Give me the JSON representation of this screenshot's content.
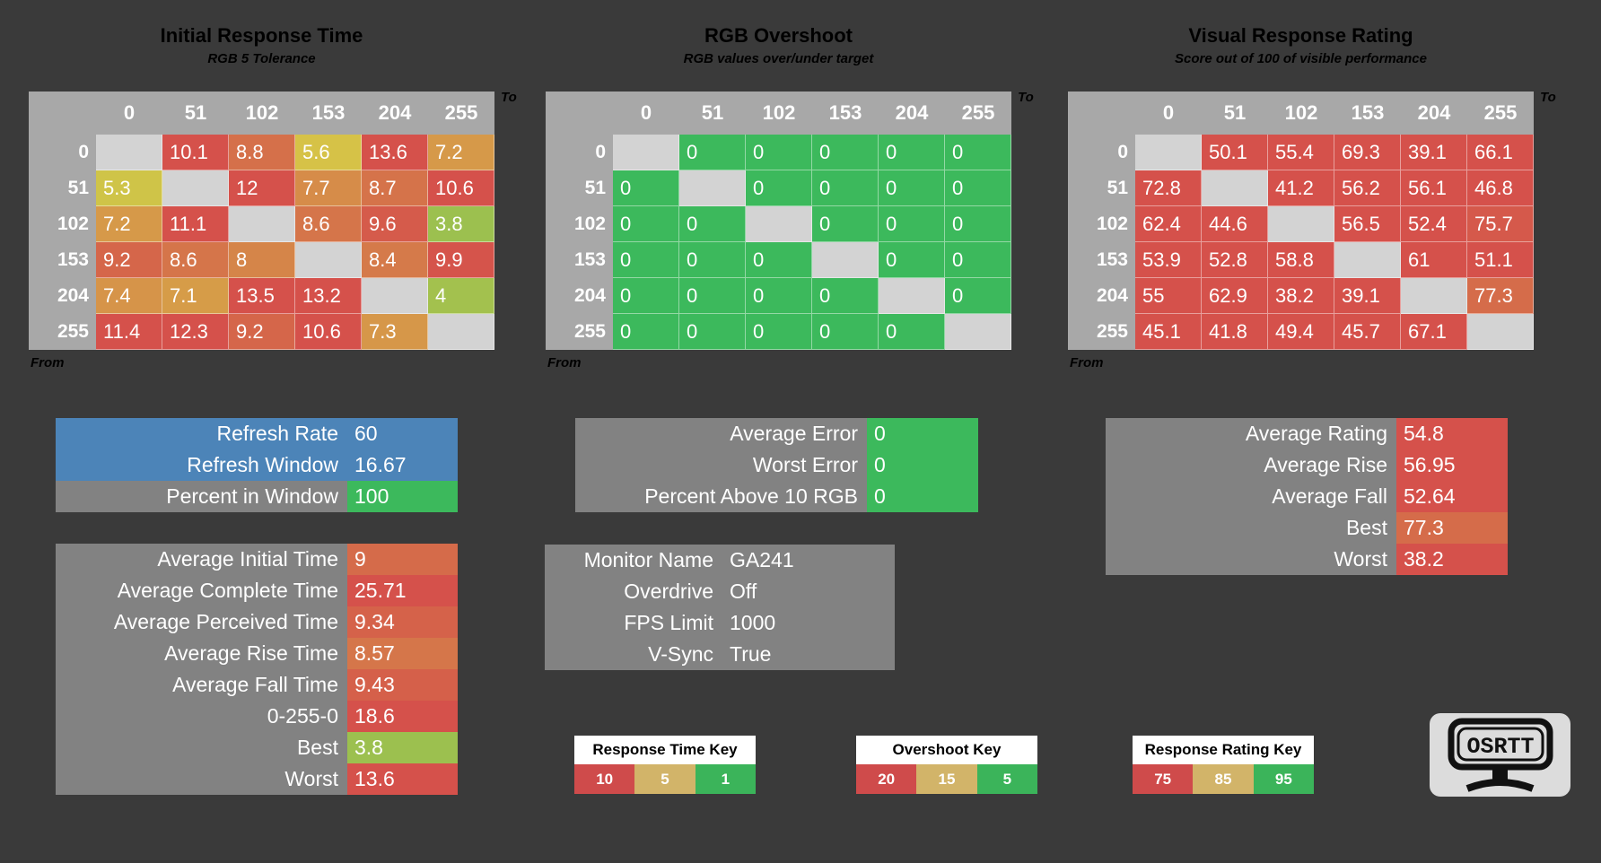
{
  "app": {
    "background": "#3a3a3a"
  },
  "scales": {
    "response": {
      "stops": [
        [
          1,
          "#3cb95c"
        ],
        [
          5.5,
          "#d6c547"
        ],
        [
          10,
          "#d5514b"
        ]
      ]
    },
    "overshoot": {
      "stops": [
        [
          5,
          "#3cb95c"
        ],
        [
          12.5,
          "#d6c547"
        ],
        [
          20,
          "#d5514b"
        ]
      ]
    },
    "rating": {
      "stops": [
        [
          75,
          "#d5514b"
        ],
        [
          85,
          "#d6c547"
        ],
        [
          95,
          "#3cb95c"
        ]
      ]
    }
  },
  "heatmaps": [
    {
      "title": "Initial Response Time",
      "subtitle": "RGB 5 Tolerance",
      "to_label": "To",
      "from_label": "From",
      "levels": [
        "0",
        "51",
        "102",
        "153",
        "204",
        "255"
      ],
      "scale": "response",
      "rows": [
        [
          null,
          10.1,
          8.8,
          5.6,
          13.6,
          7.2
        ],
        [
          5.3,
          null,
          12,
          7.7,
          8.7,
          10.6
        ],
        [
          7.2,
          11.1,
          null,
          8.6,
          9.6,
          3.8
        ],
        [
          9.2,
          8.6,
          8,
          null,
          8.4,
          9.9
        ],
        [
          7.4,
          7.1,
          13.5,
          13.2,
          null,
          4
        ],
        [
          11.4,
          12.3,
          9.2,
          10.6,
          7.3,
          null
        ]
      ]
    },
    {
      "title": "RGB Overshoot",
      "subtitle": "RGB values over/under target",
      "to_label": "To",
      "from_label": "From",
      "levels": [
        "0",
        "51",
        "102",
        "153",
        "204",
        "255"
      ],
      "scale": "overshoot",
      "rows": [
        [
          null,
          0,
          0,
          0,
          0,
          0
        ],
        [
          0,
          null,
          0,
          0,
          0,
          0
        ],
        [
          0,
          0,
          null,
          0,
          0,
          0
        ],
        [
          0,
          0,
          0,
          null,
          0,
          0
        ],
        [
          0,
          0,
          0,
          0,
          null,
          0
        ],
        [
          0,
          0,
          0,
          0,
          0,
          null
        ]
      ]
    },
    {
      "title": "Visual Response Rating",
      "subtitle": "Score out of 100 of visible performance",
      "to_label": "To",
      "from_label": "From",
      "levels": [
        "0",
        "51",
        "102",
        "153",
        "204",
        "255"
      ],
      "scale": "rating",
      "rows": [
        [
          null,
          50.1,
          55.4,
          69.3,
          39.1,
          66.1
        ],
        [
          72.8,
          null,
          41.2,
          56.2,
          56.1,
          46.8
        ],
        [
          62.4,
          44.6,
          null,
          56.5,
          52.4,
          75.7
        ],
        [
          53.9,
          52.8,
          58.8,
          null,
          61,
          51.1
        ],
        [
          55,
          62.9,
          38.2,
          39.1,
          null,
          77.3
        ],
        [
          45.1,
          41.8,
          49.4,
          45.7,
          67.1,
          null
        ]
      ]
    }
  ],
  "summary_blocks": [
    {
      "id": "refresh",
      "rows": [
        {
          "label": "Refresh Rate",
          "value": "60",
          "row_bg": "#4c84b8"
        },
        {
          "label": "Refresh Window",
          "value": "16.67",
          "row_bg": "#4c84b8"
        },
        {
          "label": "Percent in Window",
          "value": "100",
          "label_bg": "#828282",
          "value_bg": "#3cb95c"
        }
      ]
    },
    {
      "id": "times",
      "rows": [
        {
          "label": "Average Initial Time",
          "value": 9,
          "label_bg": "#828282",
          "scale": "response"
        },
        {
          "label": "Average Complete Time",
          "value": 25.71,
          "label_bg": "#828282",
          "scale": "response"
        },
        {
          "label": "Average Perceived Time",
          "value": 9.34,
          "label_bg": "#828282",
          "scale": "response"
        },
        {
          "label": "Average Rise Time",
          "value": 8.57,
          "label_bg": "#828282",
          "scale": "response"
        },
        {
          "label": "Average Fall Time",
          "value": 9.43,
          "label_bg": "#828282",
          "scale": "response"
        },
        {
          "label": "0-255-0",
          "value": 18.6,
          "label_bg": "#828282",
          "scale": "response"
        },
        {
          "label": "Best",
          "value": 3.8,
          "label_bg": "#828282",
          "scale": "response"
        },
        {
          "label": "Worst",
          "value": 13.6,
          "label_bg": "#828282",
          "scale": "response"
        }
      ]
    },
    {
      "id": "error",
      "rows": [
        {
          "label": "Average Error",
          "value": 0,
          "label_bg": "#828282",
          "value_bg": "#3cb95c"
        },
        {
          "label": "Worst Error",
          "value": 0,
          "label_bg": "#828282",
          "value_bg": "#3cb95c"
        },
        {
          "label": "Percent Above 10 RGB",
          "value": 0,
          "label_bg": "#828282",
          "value_bg": "#3cb95c"
        }
      ]
    },
    {
      "id": "monitor",
      "rows": [
        {
          "label": "Monitor Name",
          "value": "GA241",
          "row_bg": "#828282"
        },
        {
          "label": "Overdrive",
          "value": "Off",
          "row_bg": "#828282"
        },
        {
          "label": "FPS Limit",
          "value": "1000",
          "row_bg": "#828282"
        },
        {
          "label": "V-Sync",
          "value": "True",
          "row_bg": "#828282"
        }
      ]
    },
    {
      "id": "rating",
      "rows": [
        {
          "label": "Average Rating",
          "value": 54.8,
          "label_bg": "#828282",
          "scale": "rating"
        },
        {
          "label": "Average Rise",
          "value": 56.95,
          "label_bg": "#828282",
          "scale": "rating"
        },
        {
          "label": "Average Fall",
          "value": 52.64,
          "label_bg": "#828282",
          "scale": "rating"
        },
        {
          "label": "Best",
          "value": 77.3,
          "label_bg": "#828282",
          "scale": "rating"
        },
        {
          "label": "Worst",
          "value": 38.2,
          "label_bg": "#828282",
          "scale": "rating"
        }
      ]
    }
  ],
  "keys": [
    {
      "title": "Response Time Key",
      "entries": [
        {
          "value": "10",
          "color": "#cf4b4b"
        },
        {
          "value": "5",
          "color": "#d2b469"
        },
        {
          "value": "1",
          "color": "#3bb45a"
        }
      ]
    },
    {
      "title": "Overshoot Key",
      "entries": [
        {
          "value": "20",
          "color": "#cf4b4b"
        },
        {
          "value": "15",
          "color": "#d2b469"
        },
        {
          "value": "5",
          "color": "#3bb45a"
        }
      ]
    },
    {
      "title": "Response Rating Key",
      "entries": [
        {
          "value": "75",
          "color": "#cf4b4b"
        },
        {
          "value": "85",
          "color": "#d2b469"
        },
        {
          "value": "95",
          "color": "#3bb45a"
        }
      ]
    }
  ],
  "logo": {
    "text": "OSRTT"
  }
}
